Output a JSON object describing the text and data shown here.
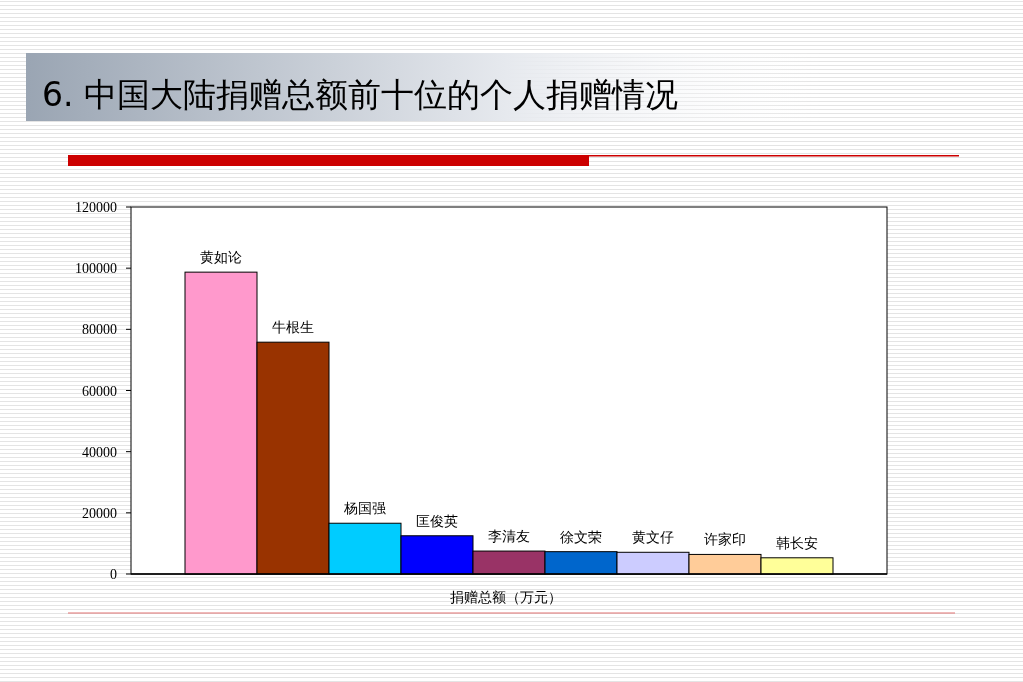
{
  "chart_data": {
    "type": "bar",
    "title": "6. 中国大陆捐赠总额前十位的个人捐赠情况",
    "xlabel": "捐赠总额（万元）",
    "categories": [
      "黄如论",
      "牛根生",
      "杨国强",
      "匡俊英",
      "李清友",
      "徐文荣",
      "黄文仔",
      "许家印",
      "韩长安"
    ],
    "values": [
      98700,
      75800,
      16600,
      12500,
      7500,
      7300,
      7100,
      6400,
      5300
    ],
    "colors": [
      "#ff99cc",
      "#993300",
      "#00ccff",
      "#0000ff",
      "#993366",
      "#0066cc",
      "#ccccff",
      "#ffcc99",
      "#ffff99"
    ],
    "ylim": [
      0,
      120000
    ],
    "yticks": [
      0,
      20000,
      40000,
      60000,
      80000,
      100000,
      120000
    ],
    "grid": false
  }
}
